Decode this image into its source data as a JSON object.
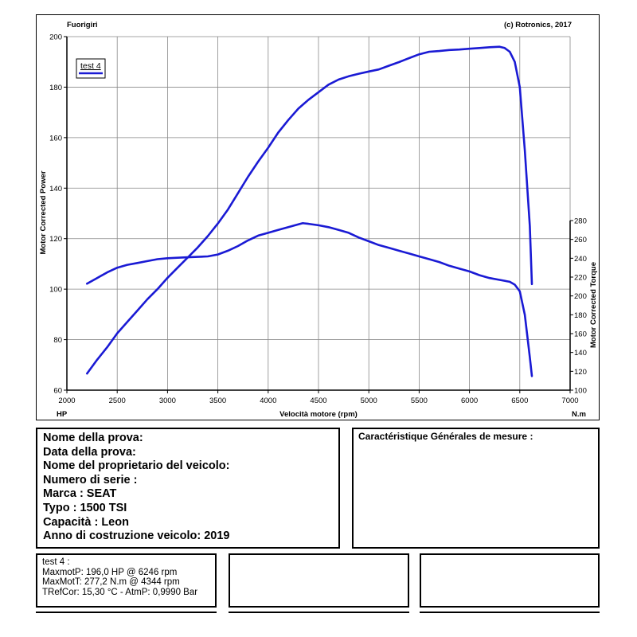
{
  "header": {
    "left_label": "Fuorigiri",
    "right_label": "(c) Rotronics, 2017"
  },
  "chart_data": {
    "type": "line",
    "xlabel": "Velocità motore (rpm)",
    "x_unit_label": "HP",
    "x2_unit_label": "N.m",
    "y_left_label": "Motor Corrected Power",
    "y_right_label": "Motor Corrected Torque",
    "x_ticks": [
      "2000",
      "2500",
      "3000",
      "3500",
      "4000",
      "4500",
      "5000",
      "5500",
      "6000",
      "6500",
      "7000"
    ],
    "xlim": [
      2000,
      7000
    ],
    "y_left_ticks": [
      "60",
      "80",
      "100",
      "120",
      "140",
      "160",
      "180",
      "200"
    ],
    "ylim_left": [
      60,
      200
    ],
    "y_right_ticks": [
      "100",
      "120",
      "140",
      "160",
      "180",
      "200",
      "220",
      "240",
      "260",
      "280"
    ],
    "ylim_right": [
      100,
      280
    ],
    "grid": true,
    "legend": {
      "position": "top-left",
      "entries": [
        "test 4"
      ]
    },
    "color": "#1a1ad4",
    "series": [
      {
        "name": "test 4",
        "axis": "left",
        "x": [
          2200,
          2300,
          2400,
          2500,
          2600,
          2700,
          2800,
          2900,
          3000,
          3100,
          3200,
          3300,
          3400,
          3500,
          3600,
          3700,
          3800,
          3900,
          4000,
          4100,
          4200,
          4300,
          4400,
          4500,
          4600,
          4700,
          4800,
          4900,
          5000,
          5100,
          5200,
          5300,
          5400,
          5500,
          5600,
          5700,
          5800,
          5900,
          6000,
          6100,
          6200,
          6300,
          6350,
          6400,
          6450,
          6500,
          6550,
          6600,
          6620
        ],
        "y": [
          66.6,
          72,
          77,
          82.5,
          87,
          91.5,
          96,
          100,
          104.5,
          108.5,
          112.5,
          116.5,
          121,
          126,
          131.5,
          138,
          144.5,
          150.5,
          156,
          162,
          167,
          171.5,
          175,
          178,
          181,
          183,
          184.3,
          185.3,
          186.2,
          187,
          188.5,
          189.9,
          191.5,
          193,
          194,
          194.3,
          194.7,
          194.9,
          195.2,
          195.5,
          195.8,
          196,
          195.5,
          194,
          190,
          180,
          155,
          125,
          102
        ]
      },
      {
        "name": "test 4",
        "axis": "right",
        "x": [
          2200,
          2300,
          2400,
          2500,
          2600,
          2700,
          2800,
          2900,
          3000,
          3100,
          3200,
          3300,
          3400,
          3500,
          3600,
          3700,
          3800,
          3900,
          4000,
          4100,
          4200,
          4300,
          4344,
          4400,
          4500,
          4600,
          4700,
          4800,
          4900,
          5000,
          5100,
          5200,
          5300,
          5400,
          5500,
          5600,
          5700,
          5800,
          5900,
          6000,
          6100,
          6200,
          6300,
          6400,
          6450,
          6500,
          6550,
          6600,
          6620
        ],
        "y": [
          213,
          219,
          225,
          230,
          233,
          235,
          237,
          239,
          240,
          240.5,
          241,
          241.5,
          242,
          244,
          248,
          253,
          259,
          264,
          267,
          270,
          273,
          276,
          277.2,
          276.5,
          275,
          273,
          270,
          267,
          262,
          258,
          254,
          251,
          248,
          245,
          242,
          239,
          236,
          232,
          229,
          226,
          222,
          219,
          217,
          215,
          212,
          205,
          180,
          135,
          115
        ]
      }
    ],
    "annotation": {
      "line1": "test 4 :",
      "line2": "MaxmotP: 196,0 HP @ 6246 rpm",
      "line3": "MaxMotT: 277,2 N.m @ 4344 rpm",
      "line4": "TRefCor: 15,30 °C - AtmP: 0,9990 Bar"
    }
  },
  "vehicle": {
    "lines": [
      "Nome della prova:",
      "Data della prova:",
      "Nome del proprietario del veicolo:",
      "Numero di serie  :",
      "Marca  : SEAT",
      "Typo  : 1500 TSI",
      "Capacità  : Leon",
      "Anno di costruzione veicolo: 2019"
    ]
  },
  "general": {
    "title": "Caractéristique Générales de mesure :"
  }
}
